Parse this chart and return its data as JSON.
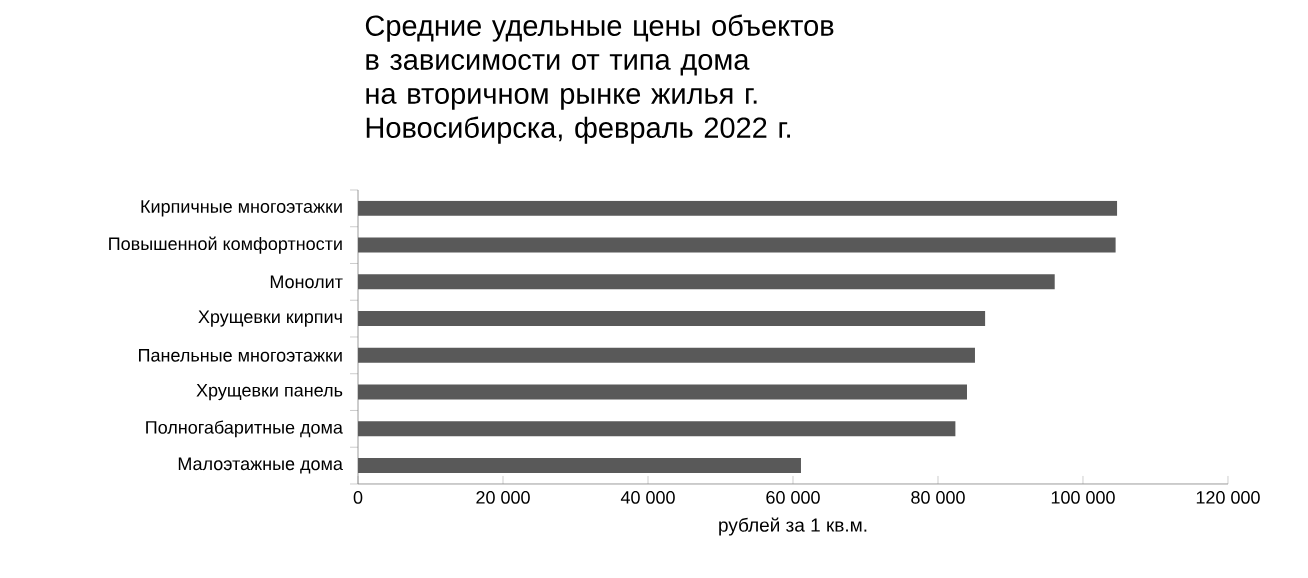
{
  "chart_data": {
    "type": "bar",
    "orientation": "horizontal",
    "title": "Средние удельные цены объектов в зависимости от типа дома на вторичном рынке жилья г. Новосибирска, февраль 2022 г.",
    "xlabel": "рублей за 1 кв.м.",
    "categories": [
      "Кирпичные многоэтажки",
      "Повышенной комфортности",
      "Монолит",
      "Хрущевки кирпич",
      "Панельные многоэтажки",
      "Хрущевки панель",
      "Полногабаритные дома",
      "Малоэтажные дома"
    ],
    "values": [
      104700,
      104500,
      96100,
      86500,
      85100,
      84000,
      82400,
      61100
    ],
    "color": "#595959",
    "xlim": [
      0,
      120000
    ],
    "xticks": [
      0,
      {
        "value": 20000,
        "label": "20 000"
      },
      {
        "value": 40000,
        "label": "40 000"
      },
      {
        "value": 60000,
        "label": "60 000"
      },
      {
        "value": 80000,
        "label": "80 000"
      },
      {
        "value": 100000,
        "label": "100 000"
      },
      {
        "value": 120000,
        "label": "120 000"
      }
    ],
    "grid": false
  }
}
